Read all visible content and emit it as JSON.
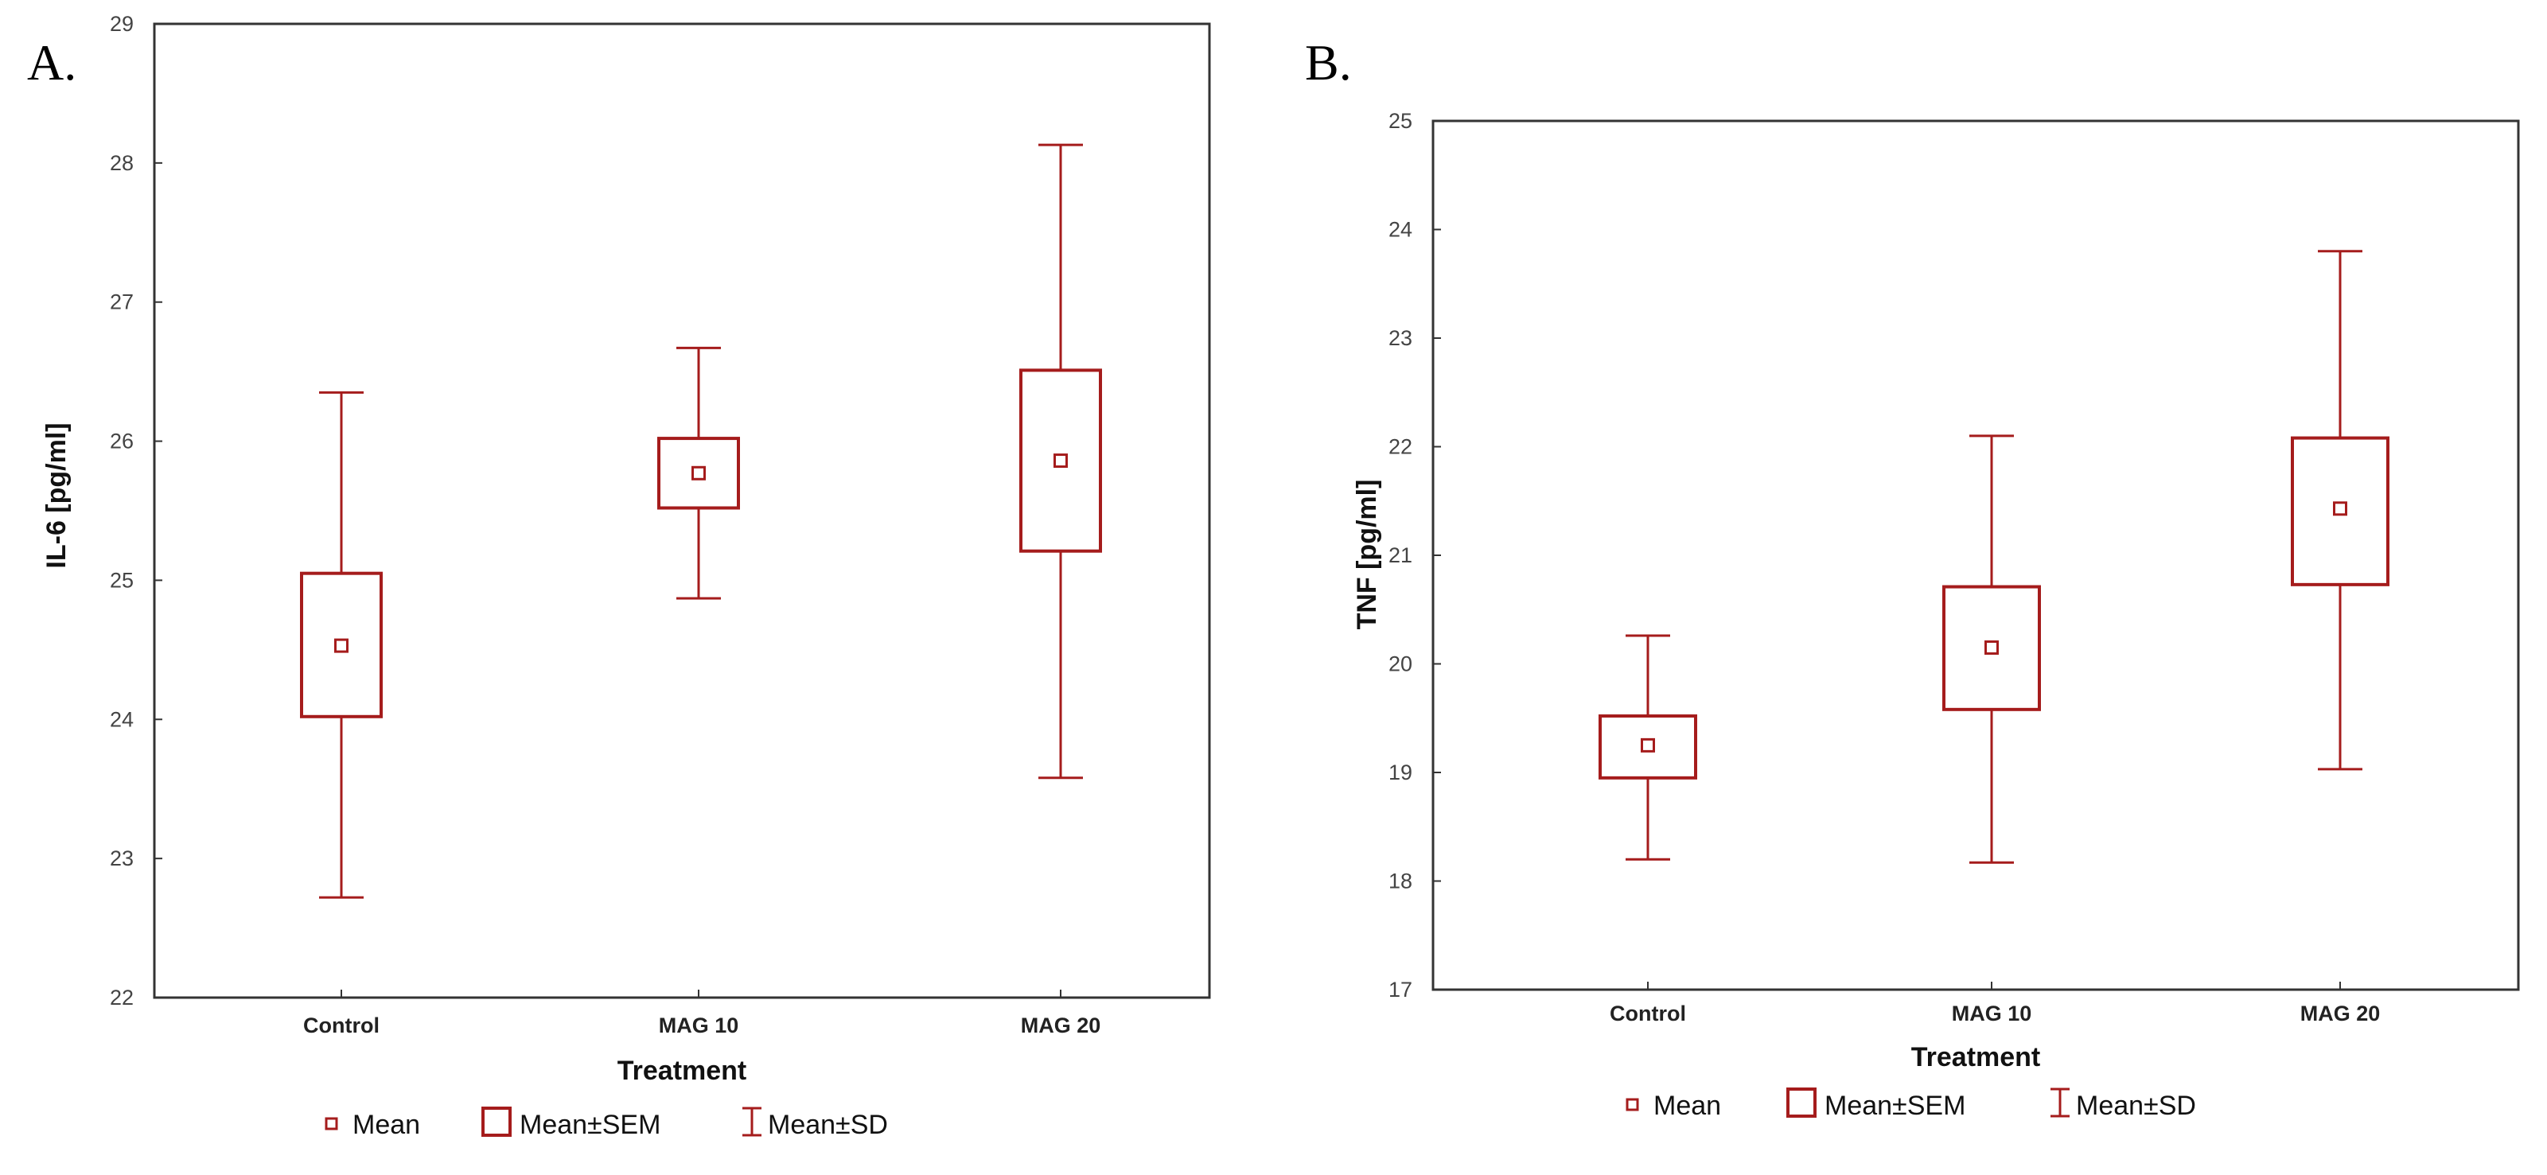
{
  "panels": [
    {
      "label": "A."
    },
    {
      "label": "B."
    }
  ],
  "chart_data": [
    {
      "type": "box",
      "ylabel": "IL-6 [pg/ml]",
      "xlabel": "Treatment",
      "ylim": [
        22,
        29
      ],
      "yticks": [
        22,
        23,
        24,
        25,
        26,
        27,
        28,
        29
      ],
      "categories": [
        "Control",
        "MAG 10",
        "MAG 20"
      ],
      "mean": [
        24.53,
        25.77,
        25.86
      ],
      "sem_low": [
        24.02,
        25.52,
        25.21
      ],
      "sem_high": [
        25.05,
        26.02,
        26.51
      ],
      "sd_low": [
        22.72,
        24.87,
        23.58
      ],
      "sd_high": [
        26.35,
        26.67,
        28.13
      ],
      "legend": [
        "Mean",
        "Mean±SEM",
        "Mean±SD"
      ]
    },
    {
      "type": "box",
      "ylabel": "TNF [pg/ml]",
      "xlabel": "Treatment",
      "ylim": [
        17,
        25
      ],
      "yticks": [
        17,
        18,
        19,
        20,
        21,
        22,
        23,
        24,
        25
      ],
      "categories": [
        "Control",
        "MAG 10",
        "MAG 20"
      ],
      "mean": [
        19.25,
        20.15,
        21.43
      ],
      "sem_low": [
        18.95,
        19.58,
        20.73
      ],
      "sem_high": [
        19.52,
        20.71,
        22.08
      ],
      "sd_low": [
        18.2,
        18.17,
        19.03
      ],
      "sd_high": [
        20.26,
        22.1,
        23.8
      ],
      "legend": [
        "Mean",
        "Mean±SEM",
        "Mean±SD"
      ]
    }
  ],
  "colors": {
    "series": "#A51C1C",
    "frame": "#333333"
  }
}
